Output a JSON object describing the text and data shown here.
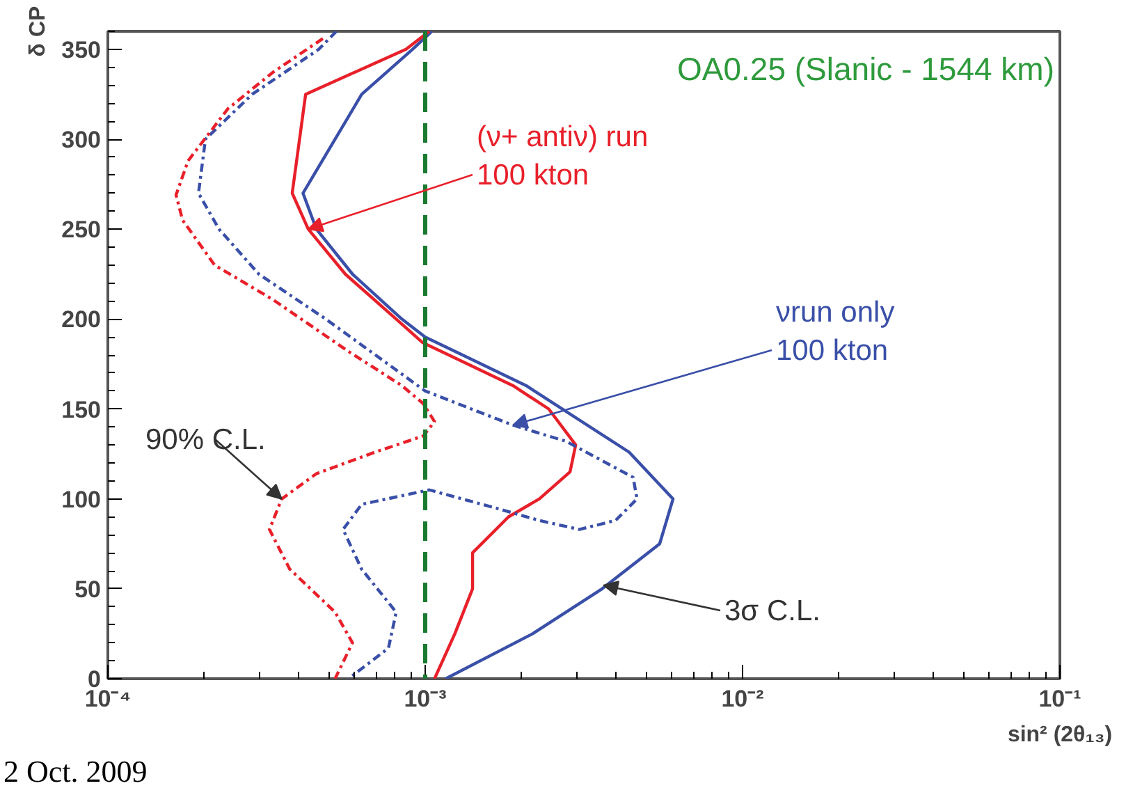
{
  "chart_data": {
    "type": "line",
    "title": "OA0.25 (Slanic - 1544 km)",
    "xlabel": "sin² (2θ₁₃)",
    "ylabel": "δ CP",
    "log": "x",
    "grid": false,
    "marker": "none",
    "xlim": [
      0.0001,
      0.1
    ],
    "xticks": [
      {
        "value": 0.0001,
        "label": "10⁻⁴"
      },
      {
        "value": 0.001,
        "label": "10⁻³"
      },
      {
        "value": 0.01,
        "label": "10⁻²"
      },
      {
        "value": 0.1,
        "label": "10⁻¹"
      }
    ],
    "ylim": [
      0,
      360
    ],
    "yticks": [
      0,
      50,
      100,
      150,
      200,
      250,
      300,
      350
    ],
    "series": [
      {
        "color": "#3a4fa8",
        "line_style": "solid",
        "x": [
          0.00105,
          0.000912,
          0.000631,
          0.000412,
          0.000454,
          0.00059,
          0.000844,
          0.001,
          0.00208,
          0.00439,
          0.00604,
          0.00548,
          0.00361,
          0.00218,
          0.00116
        ],
        "values": [
          360,
          350,
          325,
          270,
          250,
          225,
          200,
          190,
          163,
          126,
          100,
          75,
          50,
          25,
          0
        ]
      },
      {
        "color": "#e8202a",
        "line_style": "solid",
        "x": [
          0.00103,
          0.00087,
          0.00042,
          0.000381,
          0.000428,
          0.00056,
          0.00081,
          0.00098,
          0.00189,
          0.00245,
          0.00298,
          0.00286,
          0.00229,
          0.00183,
          0.00141,
          0.00141,
          0.00124,
          0.00107
        ],
        "values": [
          360,
          350,
          325,
          270,
          250,
          225,
          200,
          187,
          163,
          150,
          130,
          115,
          100,
          90,
          70,
          50,
          25,
          0
        ]
      },
      {
        "color": "#3a4fa8",
        "line_style": "dashed",
        "x": [
          0.000525,
          0.000462,
          0.000285,
          0.000203,
          0.000193,
          0.000224,
          0.000299,
          0.000486,
          0.001,
          0.00189,
          0.00278,
          0.00452,
          0.00465,
          0.00398,
          0.00306,
          0.00229,
          0.00166,
          0.00103,
          0.000631,
          0.000551,
          0.00063,
          0.00081,
          0.000766,
          0.000573
        ],
        "values": [
          360,
          350,
          325,
          300,
          270,
          250,
          225,
          200,
          160,
          141,
          132,
          112,
          100,
          88,
          83,
          88,
          95,
          105,
          97,
          83,
          61,
          37,
          17,
          0
        ]
      },
      {
        "color": "#e8202a",
        "line_style": "dashed",
        "x": [
          0.000476,
          0.00033,
          0.000239,
          0.000179,
          0.000164,
          0.000172,
          0.000217,
          0.00033,
          0.000573,
          0.000844,
          0.000986,
          0.00107,
          0.000986,
          0.000695,
          0.000454,
          0.000353,
          0.000323,
          0.000374,
          0.00052,
          0.00059,
          0.00052
        ],
        "values": [
          356,
          337,
          317,
          288,
          269,
          255,
          230,
          211,
          182,
          163,
          153,
          143,
          135,
          126,
          114,
          100,
          83,
          61,
          37,
          20,
          0
        ]
      }
    ],
    "ref_lines": [
      {
        "axis": "x",
        "value": 0.001,
        "color": "#1a7a30",
        "line_style": "dashed"
      }
    ],
    "annotations": [
      {
        "text": "(ν+ antiν) run\n100 kton",
        "x": 0.000428,
        "y": 250
      },
      {
        "text": "νrun only\n100 kton",
        "x": 0.00189,
        "y": 141
      },
      {
        "text": "90% C.L.",
        "x": 0.000353,
        "y": 100
      },
      {
        "text": "3σ C.L.",
        "x": 0.00365,
        "y": 52
      },
      "2 Oct. 2009"
    ]
  }
}
